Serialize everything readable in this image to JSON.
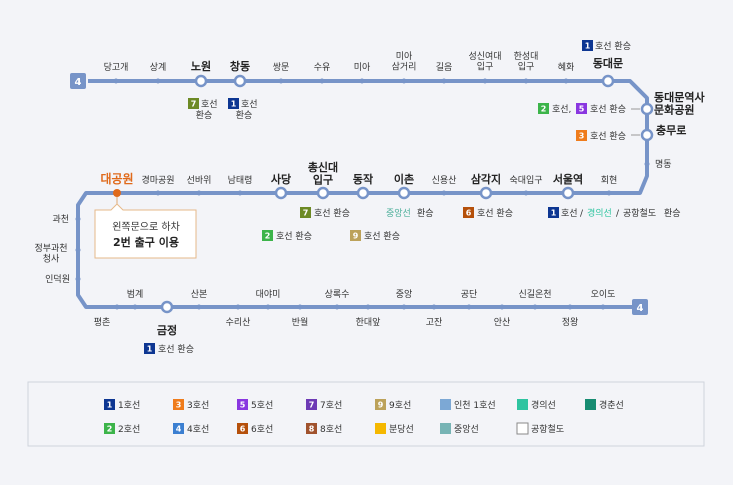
{
  "line_number": "4",
  "colors": {
    "line": "#7794c8",
    "l1": "#0d3692",
    "l2": "#3cb44a",
    "l3": "#ef7c1c",
    "l4": "#3b7fd1",
    "l5": "#8936e0",
    "l6": "#b5500b",
    "l7": "#6d8a25",
    "l8": "#e4157a",
    "l9": "#bca25a",
    "airport": "#0090d2",
    "gyeongui": "#77c4a3",
    "gyeongchun": "#178c72",
    "bundang": "#f5a200",
    "jungang": "#77c4a3",
    "incheon1": "#7ca8d5"
  },
  "stations": {
    "danggogae": "당고개",
    "sanggye": "상계",
    "nowon": "노원",
    "changdong": "창동",
    "ssangmun": "쌍문",
    "suyu": "수유",
    "mia": "미아",
    "miasageori": "미아\n삼거리",
    "gireum": "길음",
    "sungshin": "성신여대\n입구",
    "hansung": "한성대\n입구",
    "hyehwa": "혜화",
    "dongdaemun": "동대문",
    "ddp": "동대문역사\n문화공원",
    "chungmuro": "충무로",
    "myeongdong": "명동",
    "hoehyeon": "회현",
    "seoulstation": "서울역",
    "sookmyung": "숙대입구",
    "samgakji": "삼각지",
    "sinyongsan": "신용산",
    "ichon": "이촌",
    "dongjak": "동작",
    "chongshin": "총신대\n입구",
    "sadang": "사당",
    "namtaeryeong": "남태령",
    "seonbawi": "선바위",
    "racepark": "경마공원",
    "daegongwon": "대공원",
    "gwacheon": "과천",
    "govcomplex": "정부과천\n청사",
    "indeogwon": "인덕원",
    "pyeongchon": "평촌",
    "beomgye": "범계",
    "geumjeong": "금정",
    "sanbon": "산본",
    "surisan": "수리산",
    "daeyami": "대야미",
    "banwol": "반월",
    "sangroksu": "상록수",
    "handaeap": "한대앞",
    "jungang": "중앙",
    "gojan": "고잔",
    "gongdan": "공단",
    "ansan": "안산",
    "singiloncheon": "신길온천",
    "jeongwang": "정왕",
    "oido": "오이도"
  },
  "transfers": {
    "hwanseung": "환승",
    "hoseon": "호선",
    "hoseon_hwanseung": "호선 환승",
    "gyeongui_text": "경의선",
    "airport_text": "공항철도",
    "jungang_text": "중앙선",
    "comma_line5": "호선,",
    "slash": "/"
  },
  "callout": {
    "line1": "왼쪽문으로 하차",
    "line2": "2번 출구 이용"
  },
  "legend": [
    {
      "num": "1",
      "label": "1호선",
      "color": "#0d3692"
    },
    {
      "num": "3",
      "label": "3호선",
      "color": "#ef7c1c"
    },
    {
      "num": "5",
      "label": "5호선",
      "color": "#8936e0"
    },
    {
      "num": "7",
      "label": "7호선",
      "color": "#6d3ab5"
    },
    {
      "num": "9",
      "label": "9호선",
      "color": "#bca25a"
    },
    {
      "num": "",
      "label": "인천 1호선",
      "color": "#7ca8d5"
    },
    {
      "num": "",
      "label": "경의선",
      "color": "#2ec4a0"
    },
    {
      "num": "",
      "label": "경춘선",
      "color": "#178c72"
    },
    {
      "num": "2",
      "label": "2호선",
      "color": "#3cb44a"
    },
    {
      "num": "4",
      "label": "4호선",
      "color": "#3b7fd1"
    },
    {
      "num": "6",
      "label": "6호선",
      "color": "#b5500b"
    },
    {
      "num": "8",
      "label": "8호선",
      "color": "#a0522d"
    },
    {
      "num": "",
      "label": "분당선",
      "color": "#f5b800"
    },
    {
      "num": "",
      "label": "중앙선",
      "color": "#77b4b5"
    },
    {
      "num": "",
      "label": "공항철도",
      "color": "#ffffff"
    }
  ]
}
